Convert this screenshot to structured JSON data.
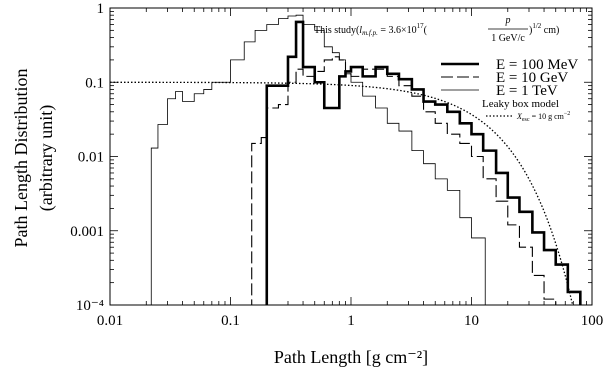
{
  "chart_data": {
    "type": "line",
    "xscale": "log",
    "yscale": "log",
    "xlim": [
      0.01,
      100
    ],
    "ylim": [
      0.0001,
      1
    ],
    "xlabel": "Path Length [g cm⁻²]",
    "ylabel_line1": "Path Length Distribution",
    "ylabel_line2": "(arbitrary unit)",
    "xticks": [
      {
        "value": 0.01,
        "label": "0.01"
      },
      {
        "value": 0.1,
        "label": "0.1"
      },
      {
        "value": 1,
        "label": "1"
      },
      {
        "value": 10,
        "label": "10"
      },
      {
        "value": 100,
        "label": "100"
      }
    ],
    "yticks": [
      {
        "value": 1,
        "label": "1"
      },
      {
        "value": 0.1,
        "label": "0.1"
      },
      {
        "value": 0.01,
        "label": "0.01"
      },
      {
        "value": 0.001,
        "label": "0.001"
      },
      {
        "value": 0.0001,
        "label": "10⁻⁴"
      }
    ],
    "study_note": {
      "prefix": "This study(",
      "lmfp": "l",
      "lmfp_sub": "m.f.p.",
      "equals": " = 3.6×10",
      "exp17": "17",
      "open": "(",
      "numerator": "p",
      "denominator": "1 GeV/c",
      "close": ")",
      "half": "1/2",
      "unit": " cm)"
    },
    "legend": [
      {
        "label": "E = 100 MeV",
        "style": "thick"
      },
      {
        "label": "E = 10 GeV",
        "style": "dashed"
      },
      {
        "label": "E = 1 TeV",
        "style": "thin"
      }
    ],
    "leaky_box_note": {
      "title": "Leaky box model",
      "x_esc": "X",
      "x_esc_sub": "esc",
      "value": " = 10 g cm",
      "value_exp": "−2"
    },
    "series": [
      {
        "style": "thick",
        "edges": [
          0.2,
          0.3,
          0.35,
          0.4,
          0.5,
          0.6,
          0.7,
          0.8,
          0.9,
          1.0,
          1.25,
          1.6,
          2.0,
          2.5,
          3.2,
          4.0,
          5.0,
          6.3,
          8.0,
          10,
          12.5,
          16,
          20,
          25,
          32,
          40,
          50,
          63,
          80
        ],
        "values": [
          0.09,
          0.22,
          0.65,
          0.16,
          0.1,
          0.045,
          0.045,
          0.12,
          0.14,
          0.16,
          0.12,
          0.16,
          0.13,
          0.11,
          0.08,
          0.055,
          0.05,
          0.04,
          0.028,
          0.02,
          0.012,
          0.006,
          0.0028,
          0.0018,
          0.00095,
          0.00055,
          0.00035,
          0.00015
        ]
      },
      {
        "style": "dashed",
        "edges": [
          0.15,
          0.18,
          0.2,
          0.25,
          0.3,
          0.35,
          0.4,
          0.5,
          0.6,
          0.7,
          0.8,
          0.9,
          1.0,
          1.25,
          1.6,
          2.0,
          2.5,
          3.2,
          4.0,
          5.0,
          6.3,
          8.0,
          10,
          12.5,
          16,
          20,
          25,
          32,
          40,
          50,
          63
        ],
        "values": [
          0.015,
          0.018,
          0.045,
          0.05,
          0.1,
          0.15,
          0.12,
          0.14,
          0.2,
          0.22,
          0.2,
          0.13,
          0.12,
          0.15,
          0.15,
          0.12,
          0.09,
          0.065,
          0.04,
          0.028,
          0.02,
          0.015,
          0.01,
          0.005,
          0.0025,
          0.0012,
          0.0006,
          0.00025,
          0.00012,
          0.0001
        ]
      },
      {
        "style": "thin",
        "edges": [
          0.016,
          0.022,
          0.025,
          0.03,
          0.035,
          0.04,
          0.05,
          0.06,
          0.07,
          0.08,
          0.1,
          0.13,
          0.16,
          0.2,
          0.25,
          0.3,
          0.35,
          0.4,
          0.5,
          0.6,
          0.7,
          0.8,
          0.9,
          1.0,
          1.25,
          1.6,
          2.0,
          2.5,
          3.2,
          4.0,
          5.0,
          6.3,
          8.0,
          10,
          13
        ],
        "values": [
          0.0001,
          0.013,
          0.027,
          0.06,
          0.075,
          0.055,
          0.07,
          0.08,
          0.1,
          0.1,
          0.2,
          0.35,
          0.5,
          0.6,
          0.72,
          0.78,
          0.8,
          0.6,
          0.5,
          0.3,
          0.25,
          0.2,
          0.13,
          0.1,
          0.065,
          0.045,
          0.028,
          0.022,
          0.012,
          0.008,
          0.005,
          0.0035,
          0.0015,
          0.0008
        ]
      },
      {
        "style": "dotted",
        "model": "leaky_box",
        "x_esc": 10,
        "norm": 0.1
      }
    ]
  }
}
